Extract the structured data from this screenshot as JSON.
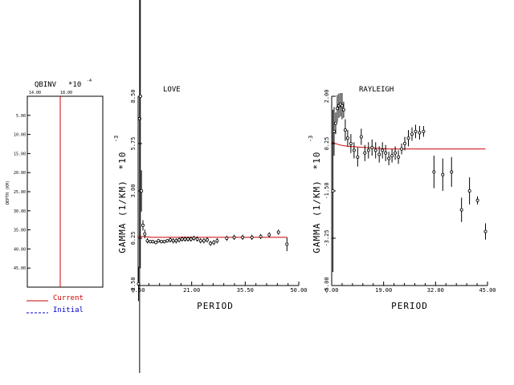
{
  "legend": {
    "current_label": "Current",
    "initial_label": "Initial",
    "current_color": "#cc0000",
    "initial_color": "#0000cc"
  },
  "chart_data": [
    {
      "type": "line",
      "title": "QBINV",
      "title_suffix": "*10",
      "title_exponent": "-4",
      "x_tick_labels": [
        "14.00",
        "18.00"
      ],
      "ylabel": "DEPTH (KM)",
      "y_tick_labels": [
        "5.00",
        "10.00",
        "15.00",
        "20.00",
        "25.00",
        "30.00",
        "35.00",
        "40.00",
        "45.00"
      ],
      "ylim": [
        0,
        50
      ],
      "series": [
        {
          "name": "Current",
          "x": [
            18.0,
            18.0
          ],
          "y": [
            0,
            50
          ],
          "color": "#cc0000"
        }
      ]
    },
    {
      "type": "scatter",
      "title": "LOVE",
      "xlabel": "PERIOD",
      "ylabel": "GAMMA (1/KM)",
      "y_multiplier": "*10",
      "y_exponent": "-3",
      "x_tick_labels": [
        "6.50",
        "21.00",
        "35.50",
        "50.00"
      ],
      "xlim": [
        6.5,
        50.0
      ],
      "y_tick_labels": [
        "-2.50",
        "0.25",
        "3.00",
        "5.75",
        "8.50"
      ],
      "ylim": [
        -2.5,
        8.5
      ],
      "observed": {
        "x": [
          6.6,
          6.9,
          7.1,
          7.4,
          7.8,
          8.3,
          9.0,
          9.8,
          10.5,
          11.3,
          12.0,
          12.8,
          13.6,
          14.4,
          15.2,
          16.0,
          16.8,
          17.6,
          18.4,
          19.2,
          20.0,
          20.8,
          21.6,
          22.5,
          23.4,
          24.3,
          25.2,
          26.1,
          27.0,
          27.9,
          30.5,
          32.5,
          34.8,
          37.3,
          39.7,
          42.0,
          44.5,
          46.8
        ],
        "y": [
          -2.4,
          7.2,
          8.5,
          3.0,
          1.0,
          0.5,
          0.1,
          0.05,
          0.05,
          0.0,
          0.1,
          0.05,
          0.05,
          0.1,
          0.15,
          0.1,
          0.1,
          0.15,
          0.2,
          0.2,
          0.2,
          0.2,
          0.25,
          0.2,
          0.1,
          0.1,
          0.15,
          -0.05,
          0.0,
          0.1,
          0.25,
          0.3,
          0.3,
          0.3,
          0.35,
          0.45,
          0.6,
          -0.1
        ],
        "err": [
          1.0,
          14.8,
          10.0,
          1.2,
          0.3,
          0.25,
          0.15,
          0.1,
          0.1,
          0.1,
          0.1,
          0.1,
          0.1,
          0.1,
          0.15,
          0.15,
          0.15,
          0.15,
          0.15,
          0.15,
          0.15,
          0.15,
          0.15,
          0.15,
          0.15,
          0.15,
          0.15,
          0.15,
          0.15,
          0.15,
          0.15,
          0.15,
          0.15,
          0.15,
          0.15,
          0.15,
          0.15,
          0.4
        ]
      },
      "current": {
        "x": [
          6.5,
          8.0,
          10.0,
          15.0,
          20.0,
          30.0,
          40.0,
          46.8
        ],
        "y": [
          0.35,
          0.35,
          0.3,
          0.3,
          0.3,
          0.3,
          0.3,
          0.3
        ],
        "color": "#cc0000"
      }
    },
    {
      "type": "scatter",
      "title": "RAYLEIGH",
      "xlabel": "PERIOD",
      "ylabel": "GAMMA (1/KM)",
      "y_multiplier": "*10",
      "y_exponent": "-3",
      "x_tick_labels": [
        "6.00",
        "19.00",
        "32.00",
        "45.00"
      ],
      "xlim": [
        6.0,
        45.0
      ],
      "y_tick_labels": [
        "-5.00",
        "-3.25",
        "-1.50",
        "0.25",
        "2.00"
      ],
      "ylim": [
        -5.0,
        2.0
      ],
      "observed": {
        "x": [
          6.3,
          6.6,
          7.0,
          7.4,
          7.8,
          8.2,
          8.6,
          9.0,
          9.4,
          10.0,
          10.8,
          11.6,
          12.5,
          13.4,
          14.3,
          15.2,
          16.1,
          17.0,
          17.9,
          18.7,
          19.5,
          20.3,
          21.1,
          21.9,
          22.7,
          23.5,
          24.3,
          25.2,
          26.1,
          27.0,
          28.0,
          29.0,
          31.6,
          33.8,
          36.0,
          38.5,
          40.5,
          42.5,
          44.5
        ],
        "y": [
          -1.5,
          0.7,
          1.0,
          1.55,
          1.65,
          1.7,
          1.65,
          1.5,
          0.75,
          0.45,
          0.25,
          0.0,
          -0.25,
          0.5,
          -0.1,
          0.0,
          0.1,
          0.0,
          -0.15,
          0.0,
          -0.1,
          -0.3,
          -0.2,
          -0.1,
          -0.25,
          0.05,
          0.25,
          0.45,
          0.6,
          0.7,
          0.65,
          0.7,
          -0.8,
          -0.9,
          -0.8,
          -2.2,
          -1.5,
          -1.85,
          -3.0
        ],
        "err": [
          3.0,
          0.9,
          0.4,
          0.5,
          0.45,
          0.45,
          0.5,
          0.3,
          0.4,
          0.3,
          0.35,
          0.3,
          0.35,
          0.3,
          0.3,
          0.3,
          0.3,
          0.3,
          0.3,
          0.3,
          0.3,
          0.25,
          0.25,
          0.25,
          0.25,
          0.2,
          0.25,
          0.3,
          0.25,
          0.25,
          0.25,
          0.2,
          0.6,
          0.6,
          0.55,
          0.45,
          0.5,
          0.15,
          0.3
        ]
      },
      "current": {
        "x": [
          6.0,
          8.0,
          10.0,
          15.0,
          20.0,
          30.0,
          40.0,
          44.5
        ],
        "y": [
          0.3,
          0.2,
          0.15,
          0.1,
          0.05,
          0.05,
          0.05,
          0.05
        ],
        "color": "#cc0000"
      }
    }
  ]
}
